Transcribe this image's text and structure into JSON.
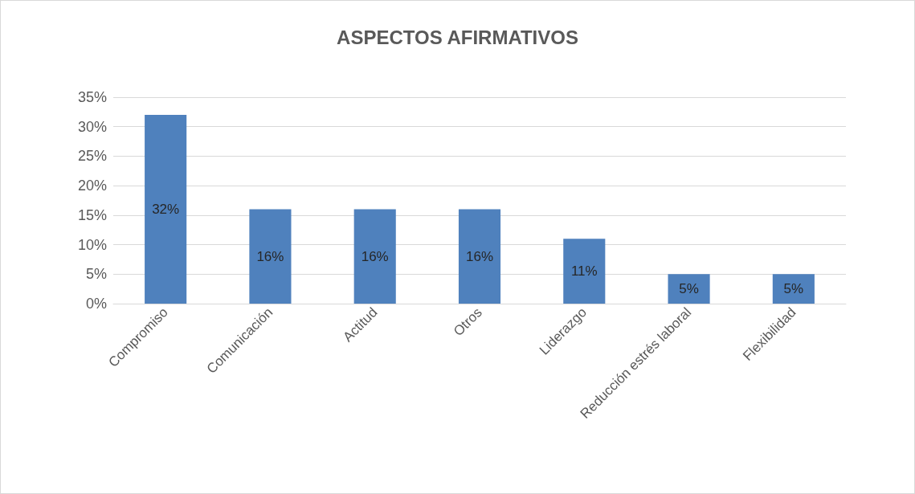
{
  "chart_data": {
    "type": "bar",
    "title": "ASPECTOS AFIRMATIVOS",
    "categories": [
      "Compromiso",
      "Comunicación",
      "Actitud",
      "Otros",
      "Liderazgo",
      "Reducción estrés laboral",
      "Flexibilidad"
    ],
    "values": [
      32,
      16,
      16,
      16,
      11,
      5,
      5
    ],
    "value_labels": [
      "32%",
      "16%",
      "16%",
      "16%",
      "11%",
      "5%",
      "5%"
    ],
    "color": "#4f81bd",
    "ylim": [
      0,
      35
    ],
    "yticks": [
      {
        "value": 0,
        "label": "0%"
      },
      {
        "value": 5,
        "label": "5%"
      },
      {
        "value": 10,
        "label": "10%"
      },
      {
        "value": 15,
        "label": "15%"
      },
      {
        "value": 20,
        "label": "20%"
      },
      {
        "value": 25,
        "label": "25%"
      },
      {
        "value": 30,
        "label": "30%"
      },
      {
        "value": 35,
        "label": "35%"
      }
    ],
    "grid": "y"
  }
}
